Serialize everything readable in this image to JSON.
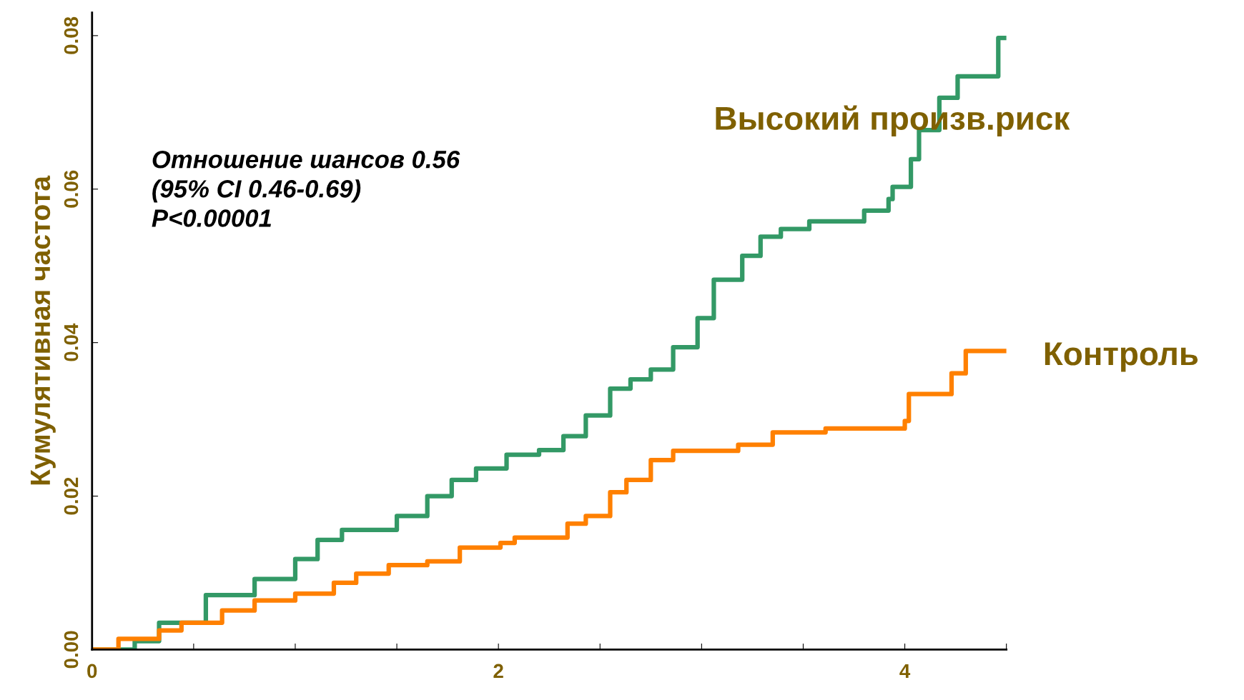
{
  "chart_data": {
    "type": "step",
    "ylabel": "Кумулятивная частота",
    "annotations": [
      "Отношение шансов 0.56\n(95% CI 0.46-0.69)\nP<0.00001"
    ],
    "series": [
      {
        "name": "Высокий произв.риск",
        "color": "#339966",
        "x": [
          0,
          0.21,
          0.33,
          0.56,
          0.8,
          1.0,
          1.11,
          1.23,
          1.34,
          1.5,
          1.65,
          1.77,
          1.89,
          2.04,
          2.2,
          2.32,
          2.43,
          2.55,
          2.65,
          2.75,
          2.86,
          2.98,
          3.06,
          3.2,
          3.29,
          3.39,
          3.53,
          3.8,
          3.92,
          3.94,
          4.03,
          4.07,
          4.17,
          4.26,
          4.46,
          4.49
        ],
        "values": [
          0,
          0.0011,
          0.0035,
          0.0071,
          0.0092,
          0.0118,
          0.0143,
          0.0156,
          0.0156,
          0.0174,
          0.02,
          0.0221,
          0.0236,
          0.0254,
          0.026,
          0.0278,
          0.0305,
          0.034,
          0.0352,
          0.0365,
          0.0394,
          0.0432,
          0.0482,
          0.0513,
          0.0538,
          0.0548,
          0.0558,
          0.0572,
          0.0587,
          0.0603,
          0.0639,
          0.0677,
          0.0719,
          0.0747,
          0.0797,
          0.0797
        ]
      },
      {
        "name": "Контроль",
        "color": "#ff8000",
        "x": [
          0,
          0.13,
          0.33,
          0.44,
          0.64,
          0.8,
          1.0,
          1.19,
          1.3,
          1.46,
          1.65,
          1.81,
          2.01,
          2.08,
          2.28,
          2.34,
          2.43,
          2.55,
          2.63,
          2.75,
          2.86,
          3.18,
          3.35,
          3.61,
          4.0,
          4.02,
          4.23,
          4.3,
          4.49
        ],
        "values": [
          0,
          0.0014,
          0.0025,
          0.0035,
          0.0051,
          0.0064,
          0.0073,
          0.0087,
          0.0099,
          0.011,
          0.0115,
          0.0133,
          0.0139,
          0.0146,
          0.0146,
          0.0164,
          0.0174,
          0.0205,
          0.0221,
          0.0247,
          0.0259,
          0.0267,
          0.0283,
          0.0288,
          0.0298,
          0.0333,
          0.036,
          0.0389,
          0.0389
        ]
      }
    ],
    "xlim": [
      0,
      4.5
    ],
    "xticks": [
      0,
      {
        "value": 0.5,
        "label": null
      },
      {
        "value": 1,
        "label": null
      },
      {
        "value": 1.5,
        "label": null
      },
      2,
      {
        "value": 2.5,
        "label": null
      },
      {
        "value": 3,
        "label": null
      },
      {
        "value": 3.5,
        "label": null
      },
      4,
      {
        "value": 4.5,
        "label": null
      }
    ],
    "ylim": [
      0,
      0.083
    ],
    "yticks": [
      {
        "value": 0,
        "label": "0.00"
      },
      {
        "value": 0.02,
        "label": "0.02"
      },
      {
        "value": 0.04,
        "label": "0.04"
      },
      {
        "value": 0.06,
        "label": "0.06"
      },
      {
        "value": 0.08,
        "label": "0.08"
      }
    ],
    "grid": false,
    "legend": false,
    "line_style": "solid"
  }
}
